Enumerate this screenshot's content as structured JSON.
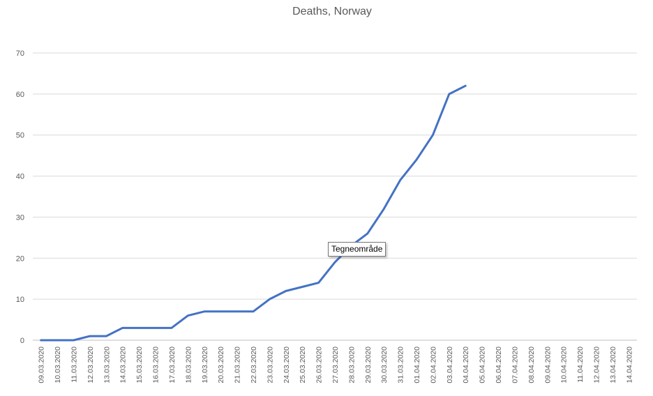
{
  "chart_data": {
    "type": "line",
    "title": "Deaths, Norway",
    "xlabel": "",
    "ylabel": "",
    "ylim": [
      0,
      70
    ],
    "yticks": [
      0,
      10,
      20,
      30,
      40,
      50,
      60,
      70
    ],
    "grid": true,
    "legend": "none",
    "x": [
      "09.03.2020",
      "10.03.2020",
      "11.03.2020",
      "12.03.2020",
      "13.03.2020",
      "14.03.2020",
      "15.03.2020",
      "16.03.2020",
      "17.03.2020",
      "18.03.2020",
      "19.03.2020",
      "20.03.2020",
      "21.03.2020",
      "22.03.2020",
      "23.03.2020",
      "24.03.2020",
      "25.03.2020",
      "26.03.2020",
      "27.03.2020",
      "28.03.2020",
      "29.03.2020",
      "30.03.2020",
      "31.03.2020",
      "01.04.2020",
      "02.04.2020",
      "03.04.2020",
      "04.04.2020",
      "05.04.2020",
      "06.04.2020",
      "07.04.2020",
      "08.04.2020",
      "09.04.2020",
      "10.04.2020",
      "11.04.2020",
      "12.04.2020",
      "13.04.2020",
      "14.04.2020"
    ],
    "series": [
      {
        "color": "#4472c4",
        "values": [
          0,
          0,
          0,
          1,
          1,
          3,
          3,
          3,
          3,
          6,
          7,
          7,
          7,
          7,
          10,
          12,
          13,
          14,
          19,
          23,
          26,
          32,
          39,
          44,
          50,
          60,
          62,
          null,
          null,
          null,
          null,
          null,
          null,
          null,
          null,
          null,
          null
        ]
      }
    ]
  },
  "tooltip": {
    "text": "Tegneområde"
  },
  "colors": {
    "grid": "#d9d9d9",
    "text": "#595959",
    "series": "#4472c4"
  }
}
